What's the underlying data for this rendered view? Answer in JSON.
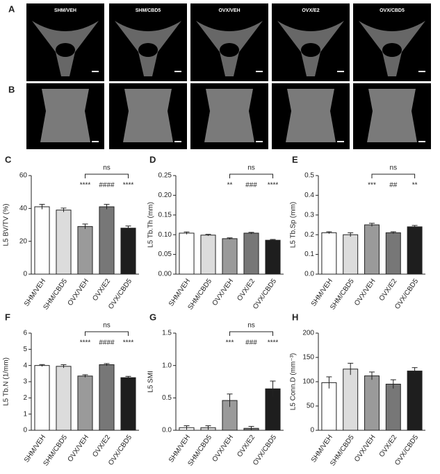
{
  "image_panels": {
    "A": {
      "letter": "A",
      "labels": [
        "SHM/VEH",
        "SHM/CBD5",
        "OVX/VEH",
        "OVX/E2",
        "OVX/CBD5"
      ]
    },
    "B": {
      "letter": "B"
    }
  },
  "chart_data": [
    {
      "type": "bar",
      "panel": "C",
      "y_label": "L5 BV/TV (%)",
      "categories": [
        "SHM/VEH",
        "SHM/CBD5",
        "OVX/VEH",
        "OVX/E2",
        "OVX/CBD5"
      ],
      "values": [
        41,
        39,
        29,
        41,
        28
      ],
      "errors": [
        1.5,
        1.2,
        1.5,
        1.5,
        1.3
      ],
      "colors": [
        "#ffffff",
        "#dcdcdc",
        "#9a9a9a",
        "#777777",
        "#1e1e1e"
      ],
      "ylim": [
        0,
        60
      ],
      "yticks": [
        0,
        20,
        40,
        60
      ],
      "annotations": [
        null,
        null,
        "****",
        "####",
        "****"
      ],
      "bracket_label": "ns"
    },
    {
      "type": "bar",
      "panel": "D",
      "y_label": "L5 Tb.Th (mm)",
      "categories": [
        "SHM/VEH",
        "SHM/CBD5",
        "OVX/VEH",
        "OVX/E2",
        "OVX/CBD5"
      ],
      "values": [
        0.104,
        0.099,
        0.09,
        0.104,
        0.086
      ],
      "errors": [
        0.003,
        0.002,
        0.002,
        0.002,
        0.002
      ],
      "colors": [
        "#ffffff",
        "#dcdcdc",
        "#9a9a9a",
        "#777777",
        "#1e1e1e"
      ],
      "ylim": [
        0,
        0.25
      ],
      "yticks": [
        {
          "value": 0,
          "label": "0.00"
        },
        {
          "value": 0.05,
          "label": "0.05"
        },
        {
          "value": 0.1,
          "label": "0.10"
        },
        {
          "value": 0.15,
          "label": "0.15"
        },
        {
          "value": 0.2,
          "label": "0.20"
        },
        {
          "value": 0.25,
          "label": "0.25"
        }
      ],
      "annotations": [
        null,
        null,
        "**",
        "###",
        "****"
      ],
      "bracket_label": "ns"
    },
    {
      "type": "bar",
      "panel": "E",
      "y_label": "L5 Tb.Sp (mm)",
      "categories": [
        "SHM/VEH",
        "SHM/CBD5",
        "OVX/VEH",
        "OVX/E2",
        "OVX/CBD5"
      ],
      "values": [
        0.21,
        0.2,
        0.25,
        0.21,
        0.24
      ],
      "errors": [
        0.005,
        0.01,
        0.008,
        0.005,
        0.007
      ],
      "colors": [
        "#ffffff",
        "#dcdcdc",
        "#9a9a9a",
        "#777777",
        "#1e1e1e"
      ],
      "ylim": [
        0,
        0.5
      ],
      "yticks": [
        {
          "value": 0,
          "label": "0.0"
        },
        0.1,
        0.2,
        0.3,
        0.4,
        0.5
      ],
      "annotations": [
        null,
        null,
        "***",
        "##",
        "**"
      ],
      "bracket_label": "ns"
    },
    {
      "type": "bar",
      "panel": "F",
      "y_label": "L5 Tb.N (1/mm)",
      "categories": [
        "SHM/VEH",
        "SHM/CBD5",
        "OVX/VEH",
        "OVX/E2",
        "OVX/CBD5"
      ],
      "values": [
        4.0,
        3.95,
        3.35,
        4.05,
        3.25
      ],
      "errors": [
        0.06,
        0.1,
        0.08,
        0.07,
        0.08
      ],
      "colors": [
        "#ffffff",
        "#dcdcdc",
        "#9a9a9a",
        "#777777",
        "#1e1e1e"
      ],
      "ylim": [
        0,
        6
      ],
      "yticks": [
        0,
        1,
        2,
        3,
        4,
        5,
        6
      ],
      "annotations": [
        null,
        null,
        "****",
        "####",
        "****"
      ],
      "bracket_label": "ns"
    },
    {
      "type": "bar",
      "panel": "G",
      "y_label": "L5 SMI",
      "categories": [
        "SHM/VEH",
        "SHM/CBD5",
        "OVX/VEH",
        "OVX/E2",
        "OVX/CBD5"
      ],
      "values": [
        0.04,
        0.04,
        0.46,
        0.03,
        0.64
      ],
      "errors": [
        0.03,
        0.03,
        0.1,
        0.03,
        0.12
      ],
      "colors": [
        "#ffffff",
        "#dcdcdc",
        "#9a9a9a",
        "#777777",
        "#1e1e1e"
      ],
      "ylim": [
        0,
        1.5
      ],
      "yticks": [
        {
          "value": 0,
          "label": "0.0"
        },
        0.5,
        {
          "value": 1,
          "label": "1.0"
        },
        1.5
      ],
      "annotations": [
        null,
        null,
        "***",
        "###",
        "****"
      ],
      "bracket_label": "ns"
    },
    {
      "type": "bar",
      "panel": "H",
      "y_label": "L5 Conn.D (mm⁻³)",
      "categories": [
        "SHM/VEH",
        "SHM/CBD5",
        "OVX/VEH",
        "OVX/E2",
        "OVX/CBD5"
      ],
      "values": [
        98,
        126,
        112,
        95,
        122
      ],
      "errors": [
        12,
        12,
        8,
        9,
        7
      ],
      "colors": [
        "#ffffff",
        "#dcdcdc",
        "#9a9a9a",
        "#777777",
        "#1e1e1e"
      ],
      "ylim": [
        0,
        200
      ],
      "yticks": [
        0,
        50,
        100,
        150,
        200
      ]
    }
  ]
}
